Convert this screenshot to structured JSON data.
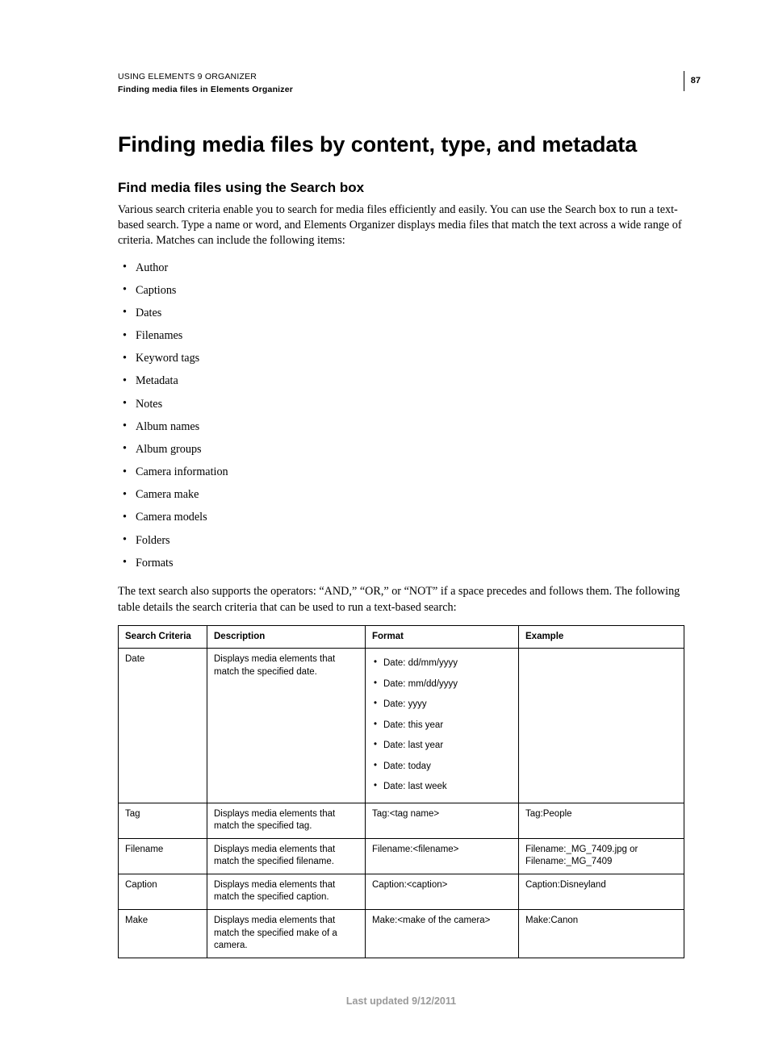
{
  "header": {
    "line1": "USING ELEMENTS 9 ORGANIZER",
    "line2": "Finding media files in Elements Organizer",
    "page_number": "87"
  },
  "title": "Finding media files by content, type, and metadata",
  "section_heading": "Find media files using the Search box",
  "intro": "Various search criteria enable you to search for media files efficiently and easily. You can use the Search box to run a text-based search. Type a name or word, and Elements Organizer displays media files that match the text across a wide range of criteria. Matches can include the following items:",
  "criteria_list": [
    "Author",
    "Captions",
    "Dates",
    "Filenames",
    "Keyword tags",
    "Metadata",
    "Notes",
    "Album names",
    "Album groups",
    "Camera information",
    "Camera make",
    "Camera models",
    "Folders",
    "Formats"
  ],
  "operators_note": "The text search also supports the operators: “AND,” “OR,” or “NOT” if a space precedes and follows them. The following table details the search criteria that can be used to run a text-based search:",
  "table": {
    "columns": [
      "Search Criteria",
      "Description",
      "Format",
      "Example"
    ],
    "rows": [
      {
        "criteria": "Date",
        "description": "Displays media elements that match the specified date.",
        "format_list": [
          "Date: dd/mm/yyyy",
          "Date: mm/dd/yyyy",
          "Date: yyyy",
          "Date: this year",
          "Date: last year",
          "Date: today",
          "Date: last week"
        ],
        "example": ""
      },
      {
        "criteria": "Tag",
        "description": "Displays media elements that match the specified tag.",
        "format": "Tag:<tag name>",
        "example": "Tag:People"
      },
      {
        "criteria": "Filename",
        "description": "Displays media elements that match the specified filename.",
        "format": "Filename:<filename>",
        "example": "Filename:_MG_7409.jpg or Filename:_MG_7409"
      },
      {
        "criteria": "Caption",
        "description": "Displays media elements that match the specified caption.",
        "format": "Caption:<caption>",
        "example": "Caption:Disneyland"
      },
      {
        "criteria": "Make",
        "description": "Displays media elements that match the specified make of a camera.",
        "format": "Make:<make of the camera>",
        "example": "Make:Canon"
      }
    ]
  },
  "footer": "Last updated 9/12/2011"
}
